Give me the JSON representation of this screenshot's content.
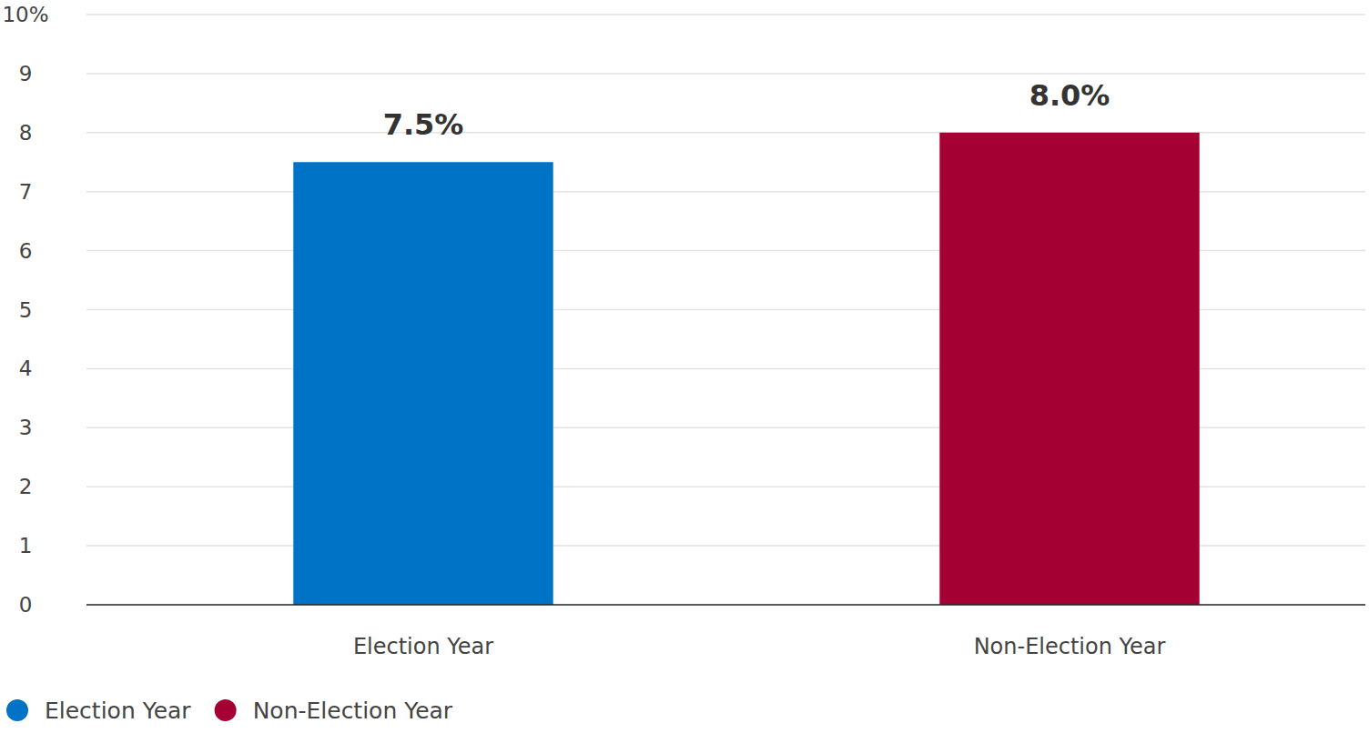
{
  "chart_data": {
    "type": "bar",
    "categories": [
      "Election Year",
      "Non-Election Year"
    ],
    "values": [
      7.5,
      8.0
    ],
    "value_labels": [
      "7.5%",
      "8.0%"
    ],
    "colors": [
      "#0073c6",
      "#a50034"
    ],
    "ylim": [
      0,
      10
    ],
    "yticks": [
      0,
      1,
      2,
      3,
      4,
      5,
      6,
      7,
      8,
      9,
      {
        "value": 10,
        "label": "10%"
      }
    ],
    "grid": true,
    "data_labels": true,
    "legend": "bottom-left"
  }
}
